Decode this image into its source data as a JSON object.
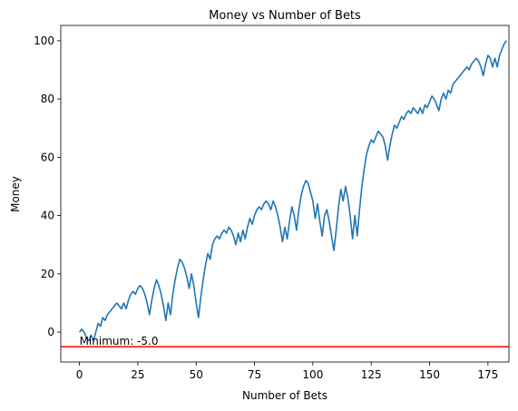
{
  "chart_data": {
    "type": "line",
    "title": "Money vs Number of Bets",
    "x_label": "Number of Bets",
    "y_label": "Money",
    "x": [
      0,
      1,
      2,
      3,
      4,
      5,
      6,
      7,
      8,
      9,
      10,
      11,
      12,
      13,
      14,
      15,
      16,
      17,
      18,
      19,
      20,
      21,
      22,
      23,
      24,
      25,
      26,
      27,
      28,
      29,
      30,
      31,
      32,
      33,
      34,
      35,
      36,
      37,
      38,
      39,
      40,
      41,
      42,
      43,
      44,
      45,
      46,
      47,
      48,
      49,
      50,
      51,
      52,
      53,
      54,
      55,
      56,
      57,
      58,
      59,
      60,
      61,
      62,
      63,
      64,
      65,
      66,
      67,
      68,
      69,
      70,
      71,
      72,
      73,
      74,
      75,
      76,
      77,
      78,
      79,
      80,
      81,
      82,
      83,
      84,
      85,
      86,
      87,
      88,
      89,
      90,
      91,
      92,
      93,
      94,
      95,
      96,
      97,
      98,
      99,
      100,
      101,
      102,
      103,
      104,
      105,
      106,
      107,
      108,
      109,
      110,
      111,
      112,
      113,
      114,
      115,
      116,
      117,
      118,
      119,
      120,
      121,
      122,
      123,
      124,
      125,
      126,
      127,
      128,
      129,
      130,
      131,
      132,
      133,
      134,
      135,
      136,
      137,
      138,
      139,
      140,
      141,
      142,
      143,
      144,
      145,
      146,
      147,
      148,
      149,
      150,
      151,
      152,
      153,
      154,
      155,
      156,
      157,
      158,
      159,
      160,
      161,
      162,
      163,
      164,
      165,
      166,
      167,
      168,
      169,
      170,
      171,
      172,
      173,
      174,
      175,
      176,
      177,
      178,
      179,
      180,
      181,
      182,
      183
    ],
    "values": [
      0,
      1,
      0,
      -2,
      -3,
      -1,
      -3,
      0,
      3,
      2,
      5,
      4,
      6,
      7,
      8,
      9,
      10,
      9,
      8,
      10,
      8,
      11,
      13,
      14,
      13,
      15,
      16,
      15,
      13,
      10,
      6,
      11,
      15,
      18,
      16,
      13,
      9,
      4,
      10,
      6,
      13,
      18,
      22,
      25,
      24,
      22,
      19,
      15,
      20,
      16,
      10,
      5,
      12,
      18,
      23,
      27,
      25,
      30,
      32,
      33,
      32,
      34,
      35,
      34,
      36,
      35,
      33,
      30,
      34,
      31,
      35,
      32,
      36,
      39,
      37,
      40,
      42,
      43,
      42,
      44,
      45,
      44,
      42,
      45,
      43,
      40,
      36,
      31,
      36,
      32,
      38,
      43,
      40,
      35,
      42,
      47,
      50,
      52,
      51,
      48,
      45,
      39,
      44,
      38,
      33,
      40,
      42,
      38,
      33,
      28,
      35,
      43,
      49,
      45,
      50,
      46,
      40,
      32,
      40,
      33,
      42,
      50,
      56,
      61,
      64,
      66,
      65,
      67,
      69,
      68,
      67,
      64,
      59,
      64,
      68,
      71,
      70,
      72,
      74,
      73,
      75,
      76,
      75,
      77,
      76,
      75,
      77,
      75,
      78,
      77,
      79,
      81,
      80,
      78,
      76,
      80,
      82,
      80,
      83,
      82,
      85,
      86,
      87,
      88,
      89,
      90,
      91,
      90,
      92,
      93,
      94,
      93,
      91,
      88,
      92,
      95,
      94,
      91,
      94,
      91,
      95,
      97,
      99,
      100
    ],
    "color": "#1f77b4",
    "hline": {
      "value": -5,
      "color": "red"
    },
    "annotation": {
      "text": "Minimum: -5.0",
      "x": 0,
      "y": -5
    },
    "xlim": [
      -8,
      184
    ],
    "ylim": [
      -10.25,
      105.25
    ],
    "xticks": [
      0,
      25,
      50,
      75,
      100,
      125,
      150,
      175
    ],
    "yticks": [
      0,
      20,
      40,
      60,
      80,
      100
    ]
  }
}
